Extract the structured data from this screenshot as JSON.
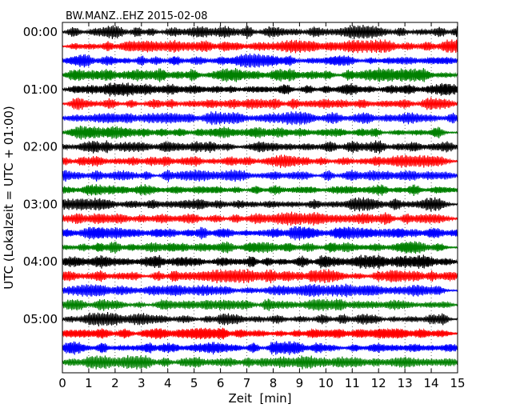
{
  "chart_data": {
    "type": "line",
    "title": "BW.MANZ..EHZ 2015-02-08",
    "xlabel": "Zeit  [min]",
    "ylabel": "UTC (Lokalzeit = UTC + 01:00)",
    "xlim": [
      0,
      15
    ],
    "x_ticks": [
      "0",
      "1",
      "2",
      "3",
      "4",
      "5",
      "6",
      "7",
      "8",
      "9",
      "10",
      "11",
      "12",
      "13",
      "14",
      "15"
    ],
    "y_tick_labels": [
      "00:00",
      "01:00",
      "02:00",
      "03:00",
      "04:00",
      "05:00"
    ],
    "trace_count": 24,
    "trace_minutes": 15,
    "trace_colors": [
      "#000000",
      "#ff0000",
      "#0000ff",
      "#008000"
    ],
    "grid": "vertical dotted lines at each minute",
    "series": [
      {
        "start": "00:00",
        "color": "#000000"
      },
      {
        "start": "00:15",
        "color": "#ff0000"
      },
      {
        "start": "00:30",
        "color": "#0000ff"
      },
      {
        "start": "00:45",
        "color": "#008000"
      },
      {
        "start": "01:00",
        "color": "#000000"
      },
      {
        "start": "01:15",
        "color": "#ff0000"
      },
      {
        "start": "01:30",
        "color": "#0000ff"
      },
      {
        "start": "01:45",
        "color": "#008000"
      },
      {
        "start": "02:00",
        "color": "#000000"
      },
      {
        "start": "02:15",
        "color": "#ff0000"
      },
      {
        "start": "02:30",
        "color": "#0000ff"
      },
      {
        "start": "02:45",
        "color": "#008000"
      },
      {
        "start": "03:00",
        "color": "#000000"
      },
      {
        "start": "03:15",
        "color": "#ff0000"
      },
      {
        "start": "03:30",
        "color": "#0000ff"
      },
      {
        "start": "03:45",
        "color": "#008000"
      },
      {
        "start": "04:00",
        "color": "#000000"
      },
      {
        "start": "04:15",
        "color": "#ff0000"
      },
      {
        "start": "04:30",
        "color": "#0000ff"
      },
      {
        "start": "04:45",
        "color": "#008000"
      },
      {
        "start": "05:00",
        "color": "#000000"
      },
      {
        "start": "05:15",
        "color": "#ff0000"
      },
      {
        "start": "05:30",
        "color": "#0000ff"
      },
      {
        "start": "05:45",
        "color": "#008000"
      }
    ]
  }
}
